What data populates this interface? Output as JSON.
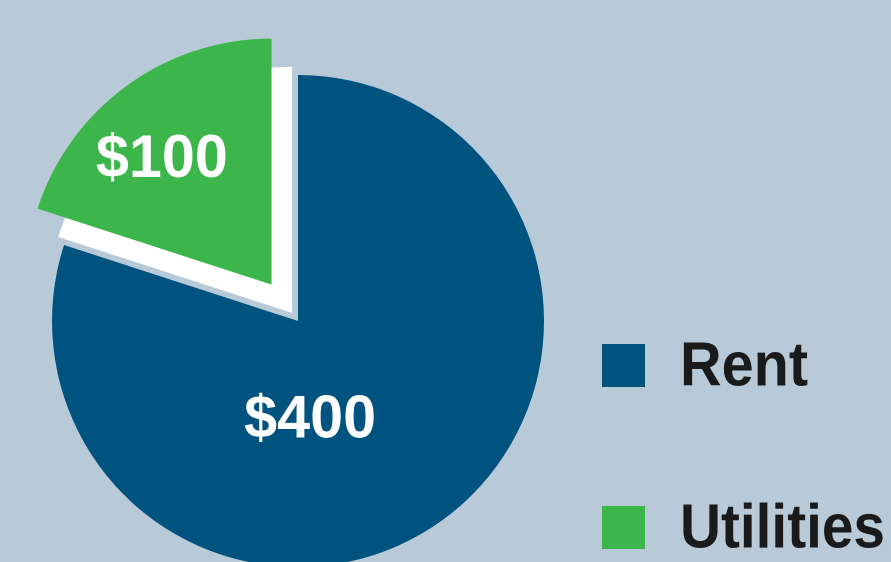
{
  "chart_data": {
    "type": "pie",
    "categories": [
      "Rent",
      "Utilities"
    ],
    "values": [
      400,
      100
    ],
    "value_labels": [
      "$400",
      "$100"
    ],
    "colors": [
      "#00527f",
      "#3cb54a"
    ],
    "exploded": "Utilities"
  }
}
